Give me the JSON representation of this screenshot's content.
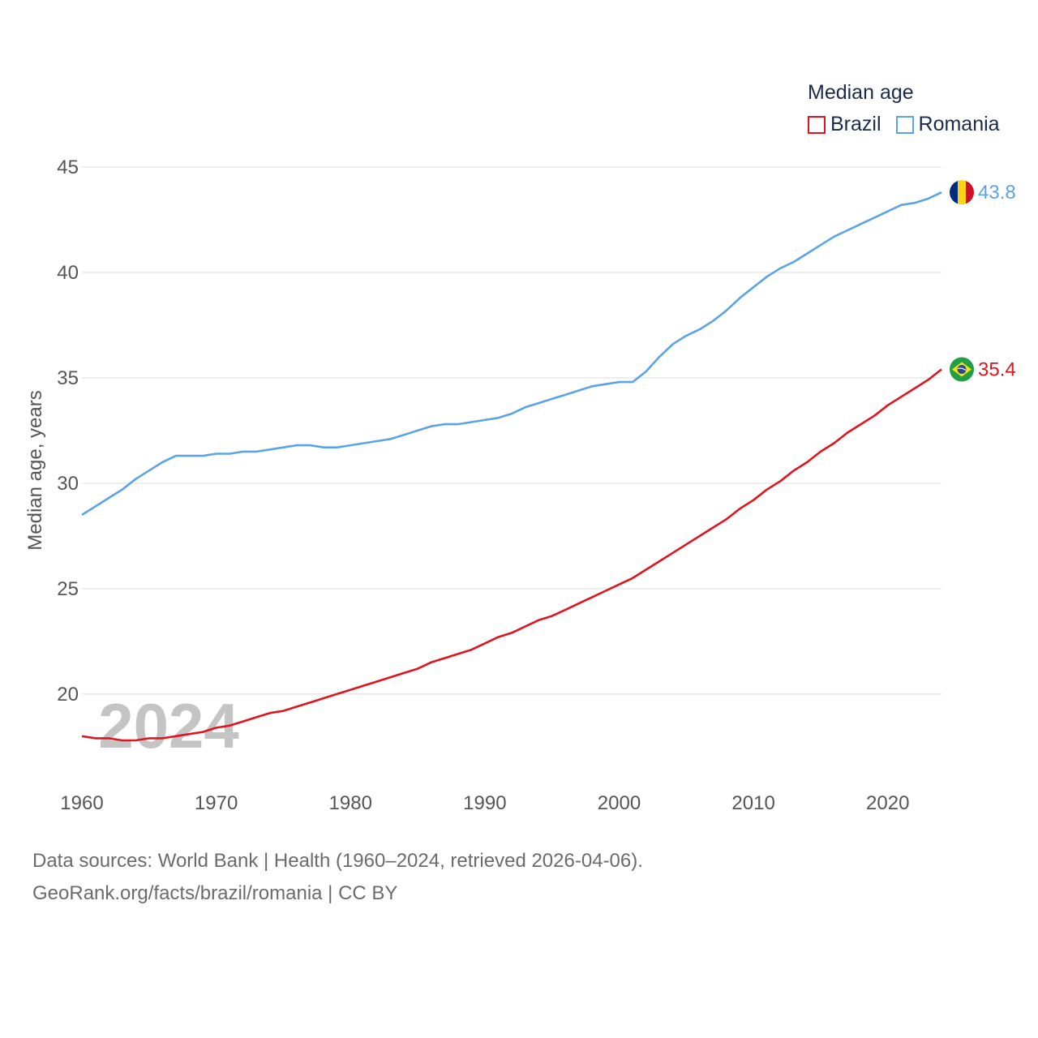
{
  "colors": {
    "brazil": "#e0141e",
    "romania": "#5ba3e6",
    "grid": "#e6e6e6",
    "axis_text": "#555555",
    "watermark": "#c4c4c4"
  },
  "legend": {
    "title": "Median age",
    "items": [
      "Brazil",
      "Romania"
    ]
  },
  "watermark_year": "2024",
  "end_labels": {
    "romania": "43.8",
    "brazil": "35.4"
  },
  "flags": {
    "romania": "romania-flag-icon",
    "brazil": "brazil-flag-icon"
  },
  "footer": {
    "line1": "Data sources: World Bank | Health (1960–2024, retrieved 2026-04-06).",
    "line2": "GeoRank.org/facts/brazil/romania | CC BY"
  },
  "chart_data": {
    "type": "line",
    "title": "Median age",
    "xlabel": "",
    "ylabel": "Median age, years",
    "xlim": [
      1960,
      2024
    ],
    "ylim": [
      16.3,
      46
    ],
    "yticks": [
      20,
      25,
      30,
      35,
      40,
      45
    ],
    "xticks": [
      1960,
      1970,
      1980,
      1990,
      2000,
      2010,
      2020
    ],
    "grid": true,
    "legend_position": "top-right",
    "x": [
      1960,
      1961,
      1962,
      1963,
      1964,
      1965,
      1966,
      1967,
      1968,
      1969,
      1970,
      1971,
      1972,
      1973,
      1974,
      1975,
      1976,
      1977,
      1978,
      1979,
      1980,
      1981,
      1982,
      1983,
      1984,
      1985,
      1986,
      1987,
      1988,
      1989,
      1990,
      1991,
      1992,
      1993,
      1994,
      1995,
      1996,
      1997,
      1998,
      1999,
      2000,
      2001,
      2002,
      2003,
      2004,
      2005,
      2006,
      2007,
      2008,
      2009,
      2010,
      2011,
      2012,
      2013,
      2014,
      2015,
      2016,
      2017,
      2018,
      2019,
      2020,
      2021,
      2022,
      2023,
      2024
    ],
    "series": [
      {
        "name": "Brazil",
        "values": [
          18.0,
          17.9,
          17.9,
          17.8,
          17.8,
          17.9,
          17.9,
          18.0,
          18.1,
          18.2,
          18.4,
          18.5,
          18.7,
          18.9,
          19.1,
          19.2,
          19.4,
          19.6,
          19.8,
          20.0,
          20.2,
          20.4,
          20.6,
          20.8,
          21.0,
          21.2,
          21.5,
          21.7,
          21.9,
          22.1,
          22.4,
          22.7,
          22.9,
          23.2,
          23.5,
          23.7,
          24.0,
          24.3,
          24.6,
          24.9,
          25.2,
          25.5,
          25.9,
          26.3,
          26.7,
          27.1,
          27.5,
          27.9,
          28.3,
          28.8,
          29.2,
          29.7,
          30.1,
          30.6,
          31.0,
          31.5,
          31.9,
          32.4,
          32.8,
          33.2,
          33.7,
          34.1,
          34.5,
          34.9,
          35.4
        ]
      },
      {
        "name": "Romania",
        "values": [
          28.5,
          28.9,
          29.3,
          29.7,
          30.2,
          30.6,
          31.0,
          31.3,
          31.3,
          31.3,
          31.4,
          31.4,
          31.5,
          31.5,
          31.6,
          31.7,
          31.8,
          31.8,
          31.7,
          31.7,
          31.8,
          31.9,
          32.0,
          32.1,
          32.3,
          32.5,
          32.7,
          32.8,
          32.8,
          32.9,
          33.0,
          33.1,
          33.3,
          33.6,
          33.8,
          34.0,
          34.2,
          34.4,
          34.6,
          34.7,
          34.8,
          34.8,
          35.3,
          36.0,
          36.6,
          37.0,
          37.3,
          37.7,
          38.2,
          38.8,
          39.3,
          39.8,
          40.2,
          40.5,
          40.9,
          41.3,
          41.7,
          42.0,
          42.3,
          42.6,
          42.9,
          43.2,
          43.3,
          43.5,
          43.8
        ]
      }
    ]
  }
}
